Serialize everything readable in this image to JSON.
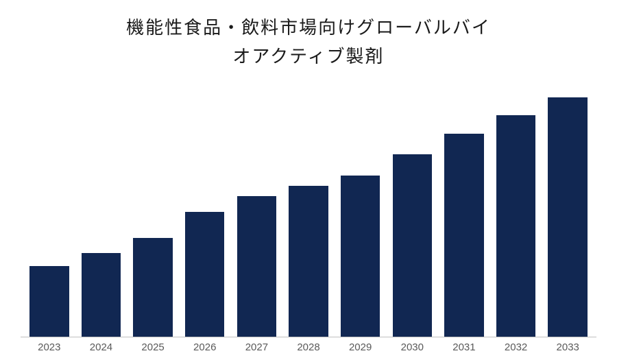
{
  "chart": {
    "type": "bar",
    "title_line1": "機能性食品・飲料市場向けグローバルバイ",
    "title_line2": "オアクティブ製剤",
    "title_fontsize": 26,
    "title_color": "#1a1a1a",
    "categories": [
      "2023",
      "2024",
      "2025",
      "2026",
      "2027",
      "2028",
      "2029",
      "2030",
      "2031",
      "2032",
      "2033"
    ],
    "values": [
      27,
      32,
      38,
      48,
      54,
      58,
      62,
      70,
      78,
      85,
      92
    ],
    "ylim": [
      0,
      100
    ],
    "bar_color": "#112752",
    "axis_line_color": "#bfbfbf",
    "x_label_color": "#595959",
    "x_label_fontsize": 15,
    "background_color": "#ffffff",
    "bar_width_ratio": 0.76
  }
}
